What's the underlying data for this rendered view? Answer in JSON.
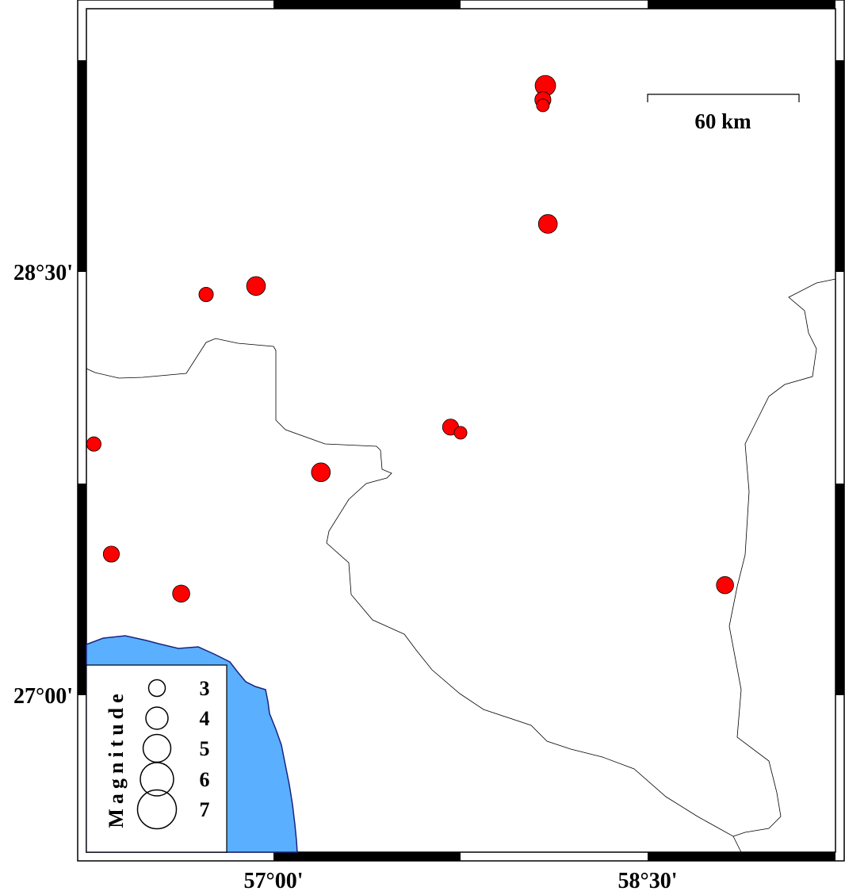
{
  "map": {
    "lon_ticks": [
      {
        "value": 57.0,
        "label": "57°00'"
      },
      {
        "value": 58.5,
        "label": "58°30'"
      }
    ],
    "lat_ticks": [
      {
        "value": 28.5,
        "label": "28°30'"
      },
      {
        "value": 27.0,
        "label": "27°00'"
      }
    ],
    "extent": {
      "lon": [
        56.25,
        59.25
      ],
      "lat": [
        26.44,
        29.43
      ]
    },
    "scale_bar": {
      "label": "60 km",
      "length_km": 60
    },
    "colors": {
      "event": "#ff0000",
      "water": "#5aafff",
      "coast": "#1a237e",
      "border": "#000000"
    }
  },
  "legend": {
    "title": "Magnitude",
    "items": [
      {
        "mag": 3,
        "label": "3"
      },
      {
        "mag": 4,
        "label": "4"
      },
      {
        "mag": 5,
        "label": "5"
      },
      {
        "mag": 6,
        "label": "6"
      },
      {
        "mag": 7,
        "label": "7"
      }
    ]
  },
  "events": [
    {
      "lon": 58.09,
      "lat": 29.16,
      "mag": 3.7
    },
    {
      "lon": 58.08,
      "lat": 29.11,
      "mag": 2.9
    },
    {
      "lon": 58.08,
      "lat": 29.09,
      "mag": 2.3
    },
    {
      "lon": 58.1,
      "lat": 28.67,
      "mag": 3.4
    },
    {
      "lon": 56.93,
      "lat": 28.45,
      "mag": 3.4
    },
    {
      "lon": 56.73,
      "lat": 28.42,
      "mag": 2.6
    },
    {
      "lon": 56.28,
      "lat": 27.89,
      "mag": 2.6
    },
    {
      "lon": 57.71,
      "lat": 27.95,
      "mag": 2.9
    },
    {
      "lon": 57.75,
      "lat": 27.93,
      "mag": 2.3
    },
    {
      "lon": 57.19,
      "lat": 27.79,
      "mag": 3.4
    },
    {
      "lon": 56.35,
      "lat": 27.5,
      "mag": 2.9
    },
    {
      "lon": 56.63,
      "lat": 27.36,
      "mag": 3.1
    },
    {
      "lon": 58.81,
      "lat": 27.39,
      "mag": 3.1
    }
  ]
}
